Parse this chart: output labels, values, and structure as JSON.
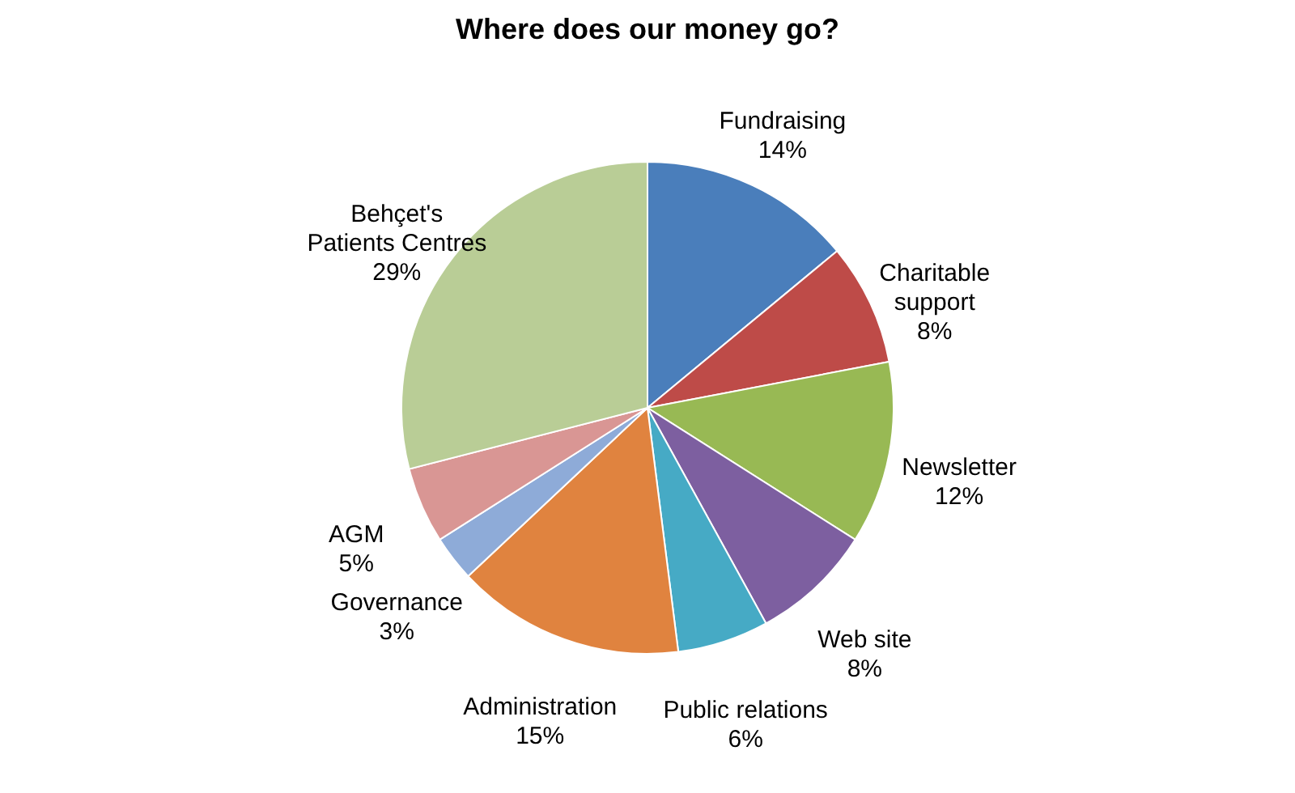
{
  "chart_data": {
    "type": "pie",
    "title": "Where does our money go?",
    "categories": [
      "Fundraising",
      "Charitable support",
      "Newsletter",
      "Web site",
      "Public relations",
      "Administration",
      "Governance",
      "AGM",
      "Behçet's Patients Centres"
    ],
    "values": [
      14,
      8,
      12,
      8,
      6,
      15,
      3,
      5,
      29
    ],
    "value_labels": [
      "14%",
      "8%",
      "12%",
      "8%",
      "6%",
      "15%",
      "3%",
      "5%",
      "29%"
    ],
    "colors": [
      "#4a7ebb",
      "#be4b48",
      "#98b954",
      "#7d5fa0",
      "#46aac5",
      "#e0833f",
      "#8eabd8",
      "#d99694",
      "#b9cd96"
    ],
    "legend": false
  }
}
